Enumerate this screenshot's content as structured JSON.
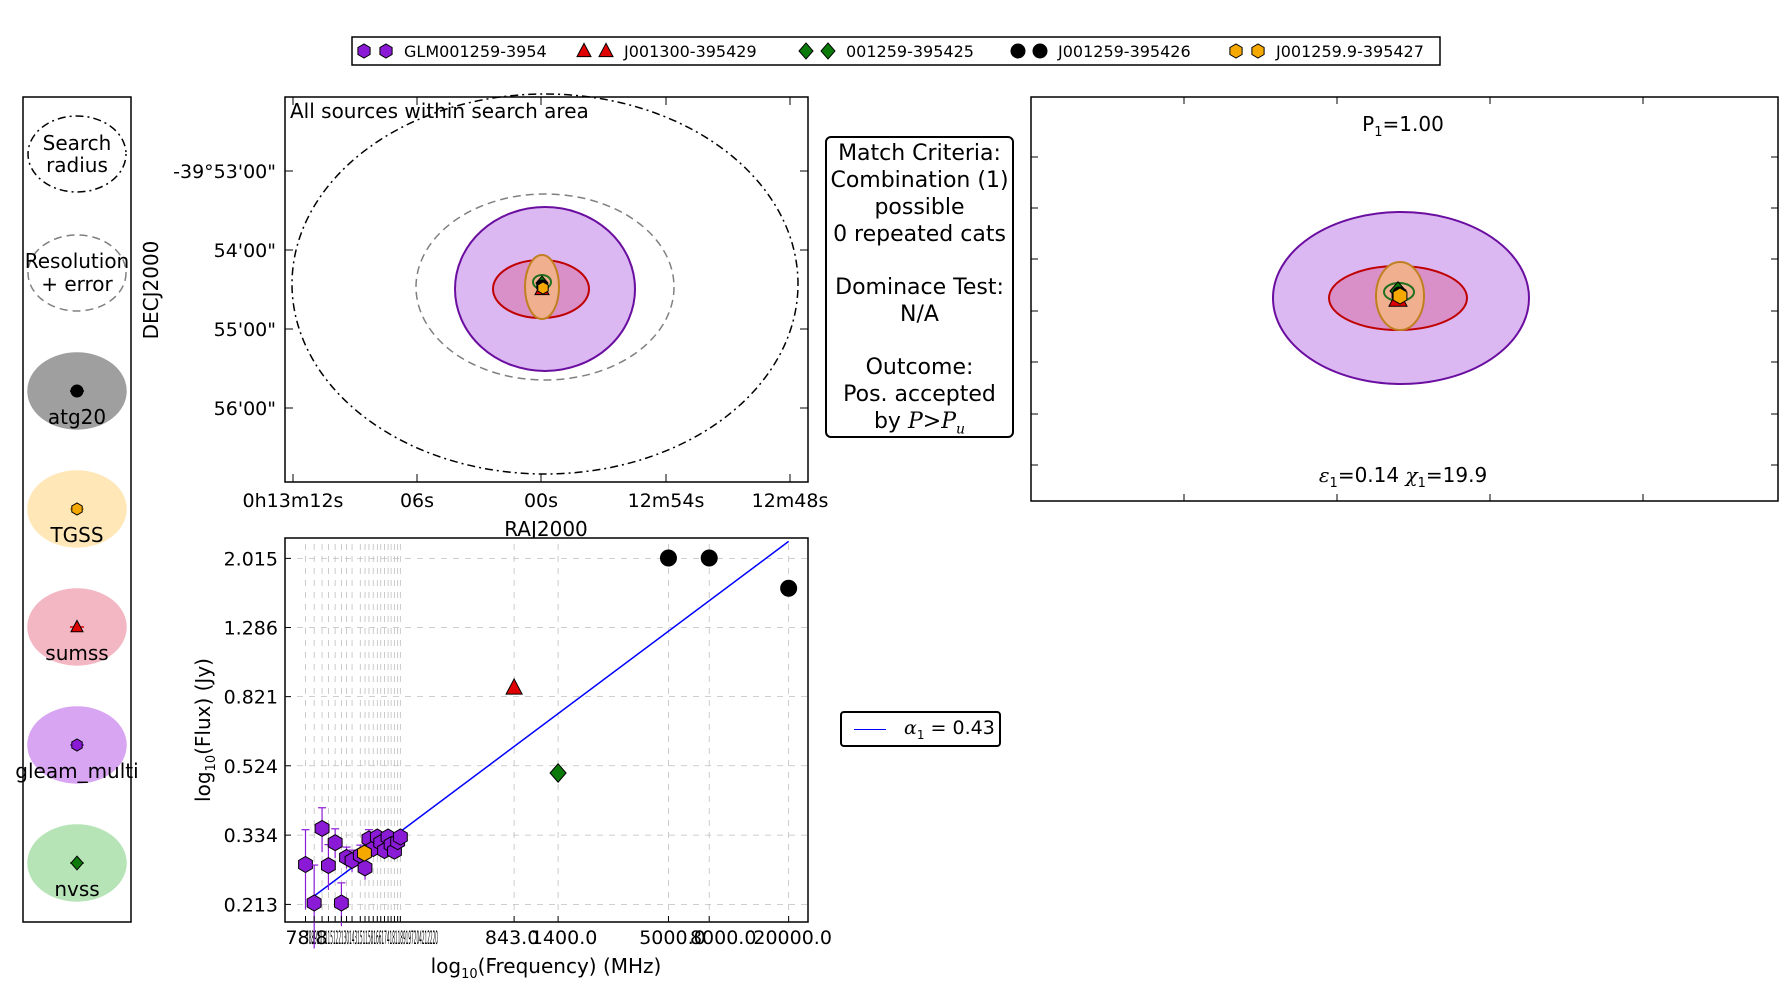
{
  "top_legend": [
    {
      "label": "GLM001259-3954",
      "color": "#8a1ad6",
      "marker": "hexagon"
    },
    {
      "label": "J001300-395429",
      "color": "#e00000",
      "marker": "triangle"
    },
    {
      "label": "001259-395425",
      "color": "#0b7a0b",
      "marker": "diamond"
    },
    {
      "label": "J001259-395426",
      "color": "#000000",
      "marker": "circle"
    },
    {
      "label": "J001259.9-395427",
      "color": "#f5a800",
      "marker": "hexagon"
    }
  ],
  "side_legend": {
    "search_radius": "Search radius",
    "search_radius_line1": "Search",
    "search_radius_line2": "radius",
    "resolution_line1": "Resolution",
    "resolution_line2": "+ error",
    "catalogs": [
      {
        "name": "atg20",
        "fill": "#7f7f7f",
        "marker_color": "#000000",
        "marker": "circle"
      },
      {
        "name": "TGSS",
        "fill": "#ffe0a0",
        "marker_color": "#f5a800",
        "marker": "hexagon"
      },
      {
        "name": "sumss",
        "fill": "#f0a0b0",
        "marker_color": "#e00000",
        "marker": "triangle"
      },
      {
        "name": "gleam_multi",
        "fill": "#cc88ee",
        "marker_color": "#8a1ad6",
        "marker": "hexagon"
      },
      {
        "name": "nvss",
        "fill": "#a0dca0",
        "marker_color": "#0b7a0b",
        "marker": "diamond"
      }
    ]
  },
  "sky_plot": {
    "title": "All sources within search area",
    "ylabel": "DECJ2000",
    "xlabel": "RAJ2000",
    "yticks": [
      "-39°53'00\"",
      "54'00\"",
      "55'00\"",
      "56'00\""
    ],
    "xticks": [
      "0h13m12s",
      "06s",
      "00s",
      "12m54s",
      "12m48s"
    ]
  },
  "criteria": {
    "lines": [
      "Match Criteria:",
      "Combination (1)",
      "possible",
      "0 repeated cats",
      "",
      "Dominace Test:",
      "N/A",
      "",
      "Outcome:",
      "Pos. accepted"
    ],
    "last_prefix": "by ",
    "last_math": "P>P",
    "last_sub": "u"
  },
  "zoom_plot": {
    "prob_label": "P",
    "prob_sub": "1",
    "prob_value": "=1.00",
    "eps_label": "ε",
    "eps_sub": "1",
    "eps_value": "=0.14 ",
    "chi_label": "χ",
    "chi_sub": "1",
    "chi_value": "=19.9"
  },
  "alpha_legend": {
    "symbol": "α",
    "sub": "1",
    "value": " = 0.43",
    "color": "#0000ff"
  },
  "chart_data": {
    "type": "scatter",
    "xlabel_prefix": "log",
    "xlabel_sub": "10",
    "xlabel_suffix": "(Frequency) (MHz)",
    "ylabel_prefix": "log",
    "ylabel_sub": "10",
    "ylabel_suffix": "(Flux) (Jy)",
    "x_scale": "log",
    "y_scale": "log",
    "xlim": [
      60,
      25000
    ],
    "ylim": [
      0.19,
      2.3
    ],
    "yticks": [
      0.213,
      0.334,
      0.524,
      0.821,
      1.286,
      2.015
    ],
    "ytick_labels": [
      "0.213",
      "0.334",
      "0.524",
      "0.821",
      "1.286",
      "2.015"
    ],
    "xticks": [
      76,
      84,
      92,
      99,
      107,
      115,
      122,
      130,
      143,
      151,
      158,
      166,
      174,
      181,
      189,
      197,
      204,
      212,
      220,
      227,
      843,
      1400,
      5000,
      8000,
      20000
    ],
    "xtick_labels_visible": [
      "78.8",
      "843.0",
      "1400.0",
      "5000.0",
      "8000.0",
      "20000.0"
    ],
    "xtick_text_overlapped": "7889107115122130143151158166174181189197204212220",
    "fit": {
      "label": "α1 = 0.43",
      "x": [
        84,
        20000
      ],
      "y": [
        0.225,
        2.25
      ],
      "color": "#0000ff"
    },
    "series": [
      {
        "name": "GLM001259-3954",
        "marker": "hexagon",
        "color": "#8a1ad6",
        "x": [
          76,
          84,
          92,
          99,
          107,
          115,
          122,
          130,
          143,
          151,
          158,
          166,
          174,
          181,
          189,
          197,
          204,
          212,
          220,
          227
        ],
        "y": [
          0.276,
          0.215,
          0.349,
          0.274,
          0.318,
          0.215,
          0.289,
          0.283,
          0.293,
          0.27,
          0.326,
          0.306,
          0.33,
          0.318,
          0.302,
          0.33,
          0.314,
          0.301,
          0.32,
          0.33
        ],
        "yerr": [
          0.07,
          0.06,
          0.05,
          0.04,
          0.03,
          0.03,
          0.02,
          0.02,
          0.02,
          0.02,
          0.02,
          0.01,
          0.01,
          0.01,
          0.01,
          0.01,
          0.01,
          0.01,
          0.01,
          0.01
        ]
      },
      {
        "name": "J001259.9-395427",
        "marker": "hexagon",
        "color": "#f5a800",
        "x": [
          150
        ],
        "y": [
          0.297
        ]
      },
      {
        "name": "J001300-395429",
        "marker": "triangle",
        "color": "#e00000",
        "x": [
          843
        ],
        "y": [
          0.87
        ]
      },
      {
        "name": "001259-395425",
        "marker": "diamond",
        "color": "#0b7a0b",
        "x": [
          1400
        ],
        "y": [
          0.5
        ]
      },
      {
        "name": "J001259-395426",
        "marker": "circle",
        "color": "#000000",
        "x": [
          5000,
          8000,
          20000
        ],
        "y": [
          2.02,
          2.02,
          1.66
        ]
      }
    ]
  }
}
